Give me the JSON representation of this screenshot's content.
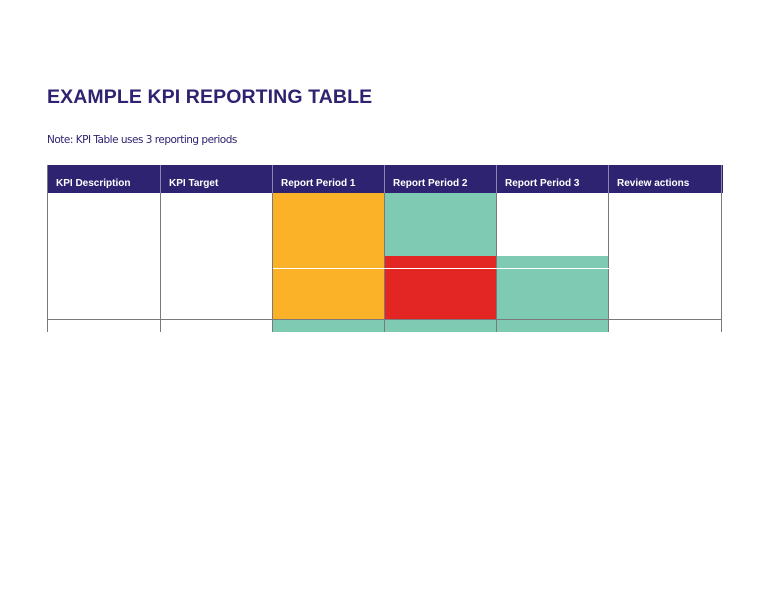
{
  "document": {
    "title": "EXAMPLE KPI REPORTING TABLE",
    "note": "Note: KPI Table uses 3 reporting periods"
  },
  "kpi_table": {
    "columns": [
      "KPI Description",
      "KPI Target",
      "Report Period 1",
      "Report Period 2",
      "Report Period 3",
      "Review actions"
    ],
    "rows": [
      {
        "cells": [
          "",
          "",
          "",
          "",
          "",
          ""
        ],
        "fills": [
          "white",
          "white",
          "amber",
          "green",
          "white",
          "white"
        ]
      },
      {
        "cells": [
          "",
          "",
          "",
          "",
          "",
          ""
        ],
        "fills": [
          "white",
          "white",
          "amber",
          "red",
          "green",
          "white"
        ]
      },
      {
        "cells": [
          "",
          "",
          "",
          "",
          "",
          ""
        ],
        "fills": [
          "white",
          "white",
          "green",
          "green",
          "green",
          "white"
        ]
      }
    ],
    "status_colors": {
      "white": "#ffffff",
      "amber": "#fbb228",
      "green": "#7ecab3",
      "red": "#e32524"
    },
    "header_color": "#2e2370"
  }
}
